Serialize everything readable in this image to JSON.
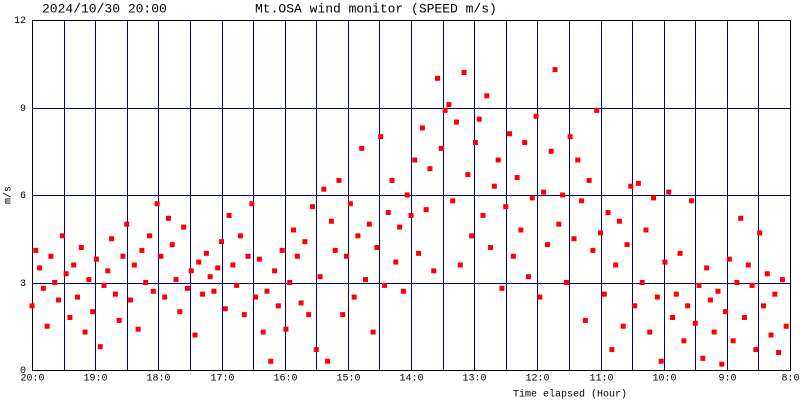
{
  "chart_data": {
    "type": "scatter",
    "timestamp": "2024/10/30 20:00",
    "title": "Mt.OSA wind monitor (SPEED m/s)",
    "ylabel": "m/s",
    "xlabel": "Time elapsed (Hour)",
    "color": "#ff0000",
    "grid": true,
    "xlim": [
      20,
      8
    ],
    "xticks": [
      {
        "value": 20,
        "label": "20:0"
      },
      {
        "value": 19,
        "label": "19:0"
      },
      {
        "value": 18,
        "label": "18:0"
      },
      {
        "value": 17,
        "label": "17:0"
      },
      {
        "value": 16,
        "label": "16:0"
      },
      {
        "value": 15,
        "label": "15:0"
      },
      {
        "value": 14,
        "label": "14:0"
      },
      {
        "value": 13,
        "label": "13:0"
      },
      {
        "value": 12,
        "label": "12:0"
      },
      {
        "value": 11,
        "label": "11:0"
      },
      {
        "value": 10,
        "label": "10:0"
      },
      {
        "value": 9,
        "label": "9:0"
      },
      {
        "value": 8,
        "label": "8:0"
      }
    ],
    "x_minor_ticks": [
      19.5,
      18.5,
      17.5,
      16.5,
      15.5,
      14.5,
      13.5,
      12.5,
      11.5,
      10.5,
      9.5,
      8.5
    ],
    "ylim": [
      0,
      12
    ],
    "yticks": [
      0,
      3,
      6,
      9,
      12
    ],
    "x": [
      20,
      19.94,
      19.88,
      19.82,
      19.76,
      19.7,
      19.64,
      19.58,
      19.52,
      19.46,
      19.4,
      19.34,
      19.28,
      19.22,
      19.16,
      19.1,
      19.04,
      18.98,
      18.92,
      18.86,
      18.8,
      18.74,
      18.68,
      18.62,
      18.56,
      18.5,
      18.44,
      18.38,
      18.32,
      18.26,
      18.2,
      18.14,
      18.08,
      18.02,
      17.96,
      17.9,
      17.84,
      17.78,
      17.72,
      17.66,
      17.6,
      17.54,
      17.48,
      17.42,
      17.36,
      17.3,
      17.24,
      17.18,
      17.12,
      17.06,
      17,
      16.94,
      16.88,
      16.82,
      16.76,
      16.7,
      16.64,
      16.58,
      16.52,
      16.46,
      16.4,
      16.34,
      16.28,
      16.22,
      16.16,
      16.1,
      16.04,
      15.98,
      15.92,
      15.86,
      15.8,
      15.74,
      15.68,
      15.62,
      15.56,
      15.5,
      15.44,
      15.38,
      15.32,
      15.26,
      15.2,
      15.14,
      15.08,
      15.02,
      14.96,
      14.9,
      14.84,
      14.78,
      14.72,
      14.66,
      14.6,
      14.54,
      14.48,
      14.42,
      14.36,
      14.3,
      14.24,
      14.18,
      14.12,
      14.06,
      14,
      13.94,
      13.88,
      13.82,
      13.76,
      13.7,
      13.64,
      13.58,
      13.52,
      13.46,
      13.4,
      13.34,
      13.28,
      13.22,
      13.16,
      13.1,
      13.04,
      12.98,
      12.92,
      12.86,
      12.8,
      12.74,
      12.68,
      12.62,
      12.56,
      12.5,
      12.44,
      12.38,
      12.32,
      12.26,
      12.2,
      12.14,
      12.08,
      12.02,
      11.96,
      11.9,
      11.84,
      11.78,
      11.72,
      11.66,
      11.6,
      11.54,
      11.48,
      11.42,
      11.36,
      11.3,
      11.24,
      11.18,
      11.12,
      11.06,
      11,
      10.94,
      10.88,
      10.82,
      10.76,
      10.7,
      10.64,
      10.58,
      10.52,
      10.46,
      10.4,
      10.34,
      10.28,
      10.22,
      10.16,
      10.1,
      10.04,
      9.98,
      9.92,
      9.86,
      9.8,
      9.74,
      9.68,
      9.62,
      9.56,
      9.5,
      9.44,
      9.38,
      9.32,
      9.26,
      9.2,
      9.14,
      9.08,
      9.02,
      8.96,
      8.9,
      8.84,
      8.78,
      8.72,
      8.66,
      8.6,
      8.54,
      8.48,
      8.42,
      8.36,
      8.3,
      8.24,
      8.18,
      8.12,
      8.06
    ],
    "values": [
      2.2,
      4.1,
      3.5,
      2.8,
      1.5,
      3.9,
      3.0,
      2.4,
      4.6,
      3.3,
      1.8,
      3.6,
      2.5,
      4.2,
      1.3,
      3.1,
      2.0,
      3.8,
      0.8,
      2.9,
      3.4,
      4.5,
      2.6,
      1.7,
      3.9,
      5.0,
      2.4,
      3.6,
      1.4,
      4.1,
      3.0,
      4.6,
      2.7,
      5.7,
      3.9,
      2.5,
      5.2,
      4.3,
      3.1,
      2.0,
      4.9,
      2.8,
      3.4,
      1.2,
      3.7,
      2.6,
      4.0,
      3.2,
      2.7,
      3.5,
      4.4,
      2.1,
      5.3,
      3.6,
      2.9,
      4.6,
      1.9,
      3.9,
      5.7,
      2.5,
      3.8,
      1.3,
      2.7,
      0.3,
      3.4,
      2.2,
      4.1,
      1.4,
      3.0,
      4.8,
      3.9,
      2.3,
      4.4,
      1.9,
      5.6,
      0.7,
      3.2,
      6.2,
      0.3,
      5.1,
      4.1,
      6.5,
      1.9,
      3.9,
      5.7,
      2.5,
      4.6,
      7.6,
      3.1,
      5.0,
      1.3,
      4.2,
      8.0,
      2.9,
      5.4,
      6.5,
      3.7,
      4.9,
      2.7,
      6.0,
      5.3,
      7.2,
      4.0,
      8.3,
      5.5,
      6.9,
      3.4,
      10.0,
      7.6,
      8.9,
      9.1,
      5.8,
      8.5,
      3.6,
      10.2,
      6.7,
      4.6,
      7.8,
      8.6,
      5.3,
      9.4,
      4.2,
      6.3,
      7.2,
      2.8,
      5.6,
      8.1,
      3.9,
      6.6,
      4.8,
      7.8,
      3.2,
      5.9,
      8.7,
      2.5,
      6.1,
      4.3,
      7.5,
      10.3,
      5.0,
      6.0,
      3.0,
      8.0,
      4.5,
      7.2,
      5.8,
      1.7,
      6.5,
      4.1,
      8.9,
      4.7,
      2.6,
      5.4,
      0.7,
      3.6,
      5.1,
      1.5,
      4.3,
      6.3,
      2.2,
      6.4,
      3.0,
      4.8,
      1.3,
      5.9,
      2.5,
      0.3,
      3.7,
      6.1,
      1.8,
      2.6,
      4.0,
      1.0,
      2.2,
      5.8,
      1.6,
      2.9,
      0.4,
      3.5,
      2.4,
      1.3,
      2.7,
      0.2,
      2.0,
      3.8,
      1.0,
      3.0,
      5.2,
      1.8,
      3.6,
      2.9,
      0.7,
      4.7,
      2.2,
      3.3,
      1.2,
      2.6,
      0.6,
      3.1,
      1.5
    ]
  }
}
